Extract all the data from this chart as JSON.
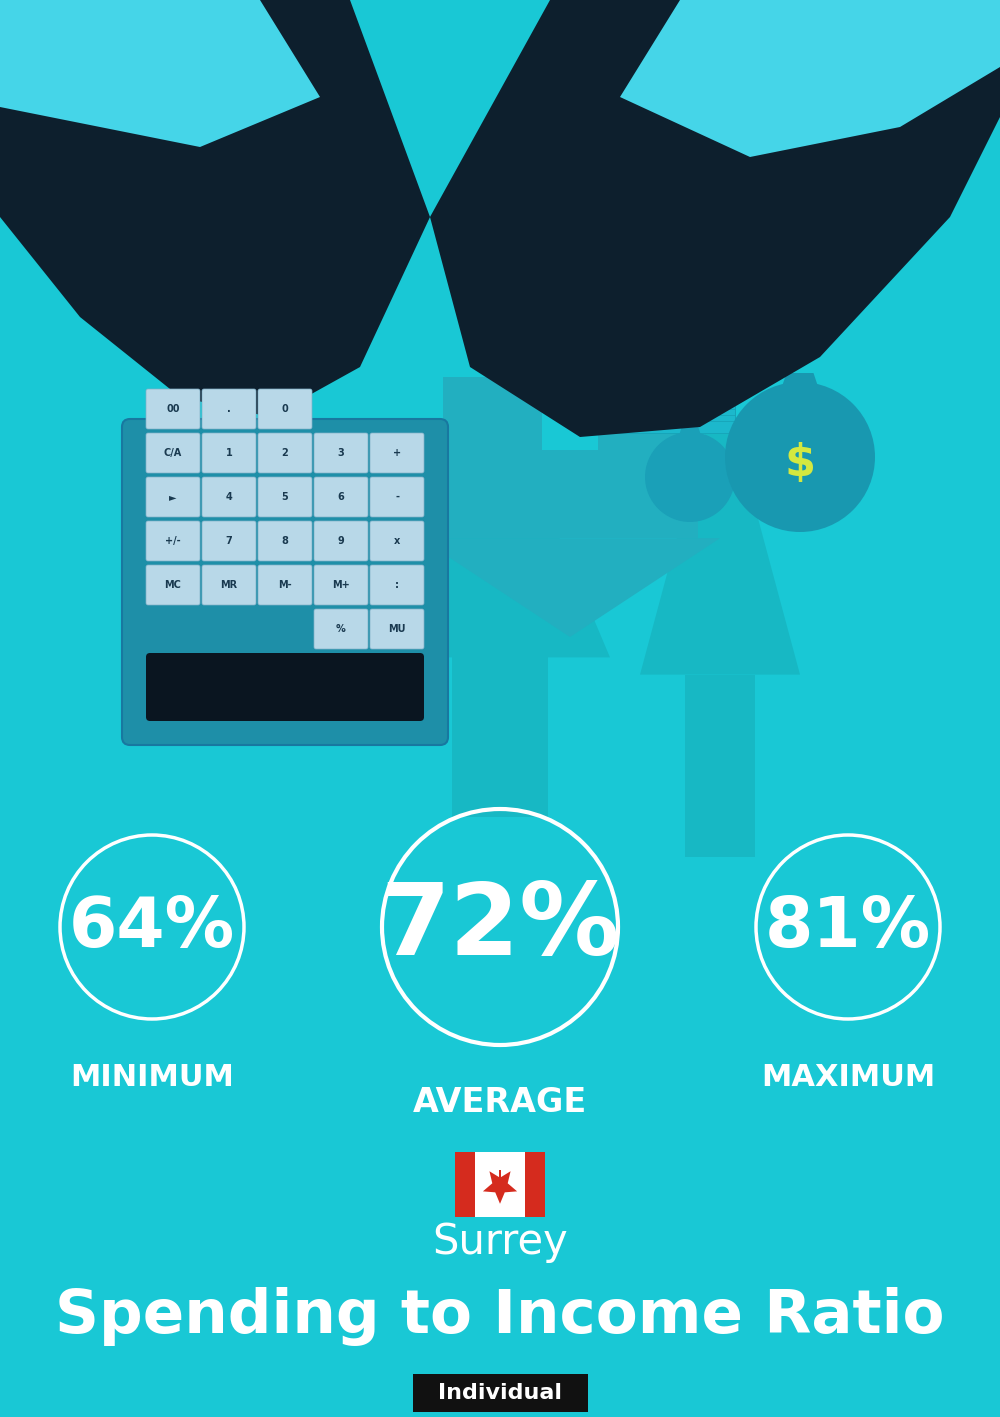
{
  "bg_color": "#19c8d5",
  "title": "Spending to Income Ratio",
  "subtitle": "Surrey",
  "tag_label": "Individual",
  "tag_bg": "#111111",
  "tag_text_color": "#ffffff",
  "avg_label": "AVERAGE",
  "min_label": "MINIMUM",
  "max_label": "MAXIMUM",
  "min_value": "64%",
  "avg_value": "72%",
  "max_value": "81%",
  "text_color": "#ffffff",
  "title_fontsize": 44,
  "subtitle_fontsize": 30,
  "label_fontsize": 22,
  "avg_label_fontsize": 24,
  "arrow_color": "#17b8c4",
  "house_color": "#22afc0",
  "hand_color": "#0d1f2d",
  "calc_color": "#1e8fa8",
  "calc_display_color": "#0a1520",
  "btn_color": "#b8d8e8",
  "btn_text_color": "#1a3a50",
  "cuff_color": "#45d5e8",
  "money_bag_color": "#1aa0b8",
  "money_label_color": "#d4e840",
  "fig_width": 10.0,
  "fig_height": 14.17,
  "dpi": 100
}
